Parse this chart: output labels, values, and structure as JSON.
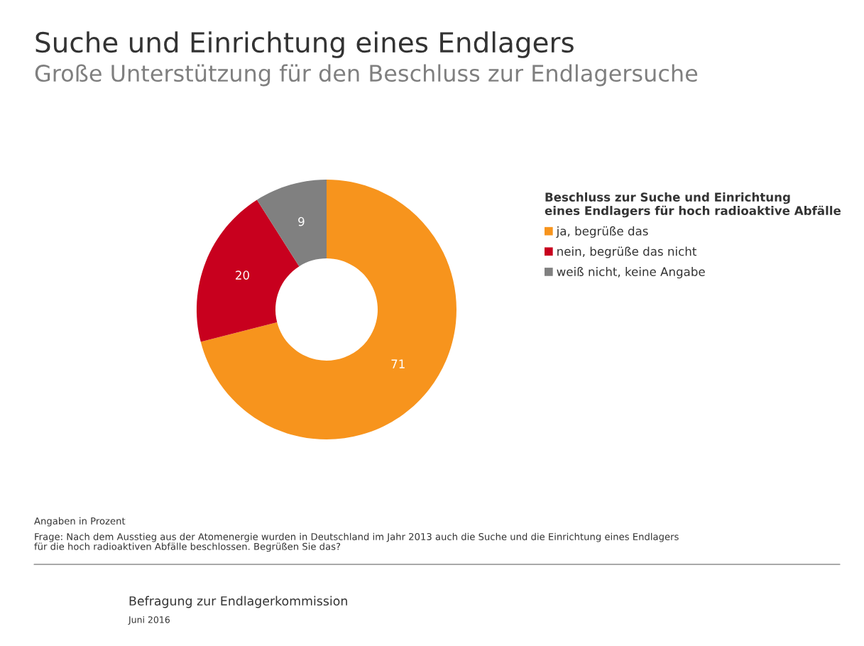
{
  "chart_data": {
    "type": "donut",
    "title": "Suche und Einrichtung eines Endlagers",
    "subtitle": "Große Unterstützung für den Beschluss zur Endlagersuche",
    "legend_title": "Beschluss zur Suche und Einrichtung\neines Endlagers für hoch radioaktive Abfälle",
    "categories": [
      "ja, begrüße das",
      "nein, begrüße das nicht",
      "weiß nicht, keine Angabe"
    ],
    "values": [
      71,
      20,
      9
    ],
    "colors": [
      "#f7941d",
      "#c8001e",
      "#808080"
    ],
    "data_labels": true,
    "legend": "right",
    "annotations": [
      "Angaben in Prozent",
      "Frage: Nach dem Ausstieg aus der Atomenergie wurden in Deutschland im Jahr 2013 auch die Suche und die Einrichtung eines Endlagers\nfür die hoch radioaktiven Abfälle beschlossen. Begrüßen Sie das?",
      "Befragung zur Endlagerkommission",
      "Juni 2016"
    ]
  }
}
